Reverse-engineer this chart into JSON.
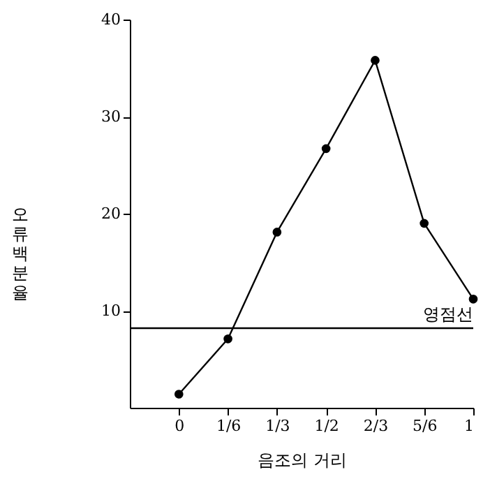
{
  "chart_data": {
    "type": "line",
    "xlabel": "음조의 거리",
    "ylabel": "오류백분율",
    "x": [
      0,
      0.1667,
      0.3333,
      0.5,
      0.6667,
      0.8333,
      1
    ],
    "series": [
      {
        "color": "#000000",
        "values": [
          1.4,
          7.1,
          18.1,
          26.7,
          35.8,
          19.0,
          11.2
        ]
      }
    ],
    "xlim": [
      -0.1667,
      1
    ],
    "xticks": [
      {
        "value": 0,
        "label": "0"
      },
      {
        "value": 0.1667,
        "label": "1/6"
      },
      {
        "value": 0.3333,
        "label": "1/3"
      },
      {
        "value": 0.5,
        "label": "1/2"
      },
      {
        "value": 0.6667,
        "label": "2/3"
      },
      {
        "value": 0.8333,
        "label": "5/6"
      },
      {
        "value": 1,
        "label": "1"
      }
    ],
    "ylim": [
      0,
      40
    ],
    "yticks": [
      10,
      20,
      30,
      40
    ],
    "ref_lines": [
      {
        "axis": "y",
        "value": 8.2,
        "label": "영점선",
        "color": "#000000"
      }
    ],
    "marker": "circle",
    "line_style": "solid",
    "grid": false
  }
}
